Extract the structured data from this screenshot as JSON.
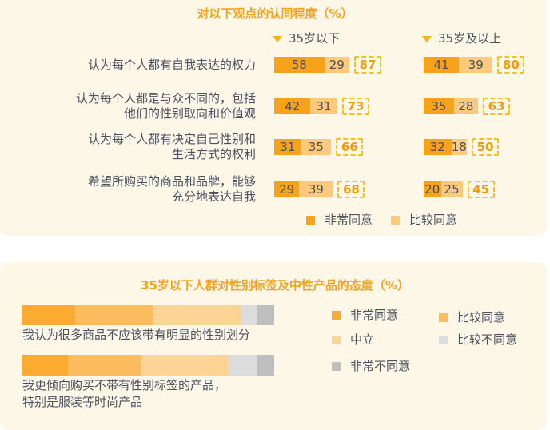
{
  "chart_data": [
    {
      "type": "bar",
      "title": "对以下观点的认同程度（%）",
      "groups": [
        "35岁以下",
        "35岁及以上"
      ],
      "categories": [
        [
          "认为每个人都有自我表达的权力"
        ],
        [
          "认为每个人都是与众不同的，包括",
          "他们的性别取向和价值观"
        ],
        [
          "认为每个人都有决定自己性别和",
          "生活方式的权利"
        ],
        [
          "希望所购买的商品和品牌，能够",
          "充分地表达自我"
        ]
      ],
      "series": [
        {
          "name": "非常同意",
          "color": "#f7a21b",
          "values": [
            [
              58,
              42,
              31,
              29
            ],
            [
              41,
              35,
              32,
              20
            ]
          ]
        },
        {
          "name": "比较同意",
          "color": "#fdc97a",
          "values": [
            [
              29,
              31,
              35,
              39
            ],
            [
              39,
              28,
              18,
              25
            ]
          ]
        }
      ],
      "totals": [
        [
          87,
          73,
          66,
          68
        ],
        [
          80,
          63,
          50,
          45
        ]
      ],
      "stacked": true,
      "orientation": "horizontal"
    },
    {
      "type": "bar",
      "title": "35岁以下人群对性别标签及中性产品的态度（%）",
      "categories": [
        [
          "我认为很多商品不应该带有明显的性别划分"
        ],
        [
          "我更倾向购买不带有性别标签的产品，",
          "特别是服装等时尚产品"
        ]
      ],
      "series": [
        {
          "name": "非常同意",
          "color": "#fbab30",
          "values": [
            21,
            18
          ]
        },
        {
          "name": "比较同意",
          "color": "#fdbd5e",
          "values": [
            31,
            29
          ]
        },
        {
          "name": "中立",
          "color": "#fdd495",
          "values": [
            35,
            35
          ]
        },
        {
          "name": "比较不同意",
          "color": "#dcdcdc",
          "values": [
            6,
            11
          ]
        },
        {
          "name": "非常不同意",
          "color": "#bfbfbf",
          "values": [
            7,
            7
          ]
        }
      ],
      "stacked": true,
      "orientation": "horizontal",
      "xlim": [
        0,
        100
      ]
    }
  ]
}
